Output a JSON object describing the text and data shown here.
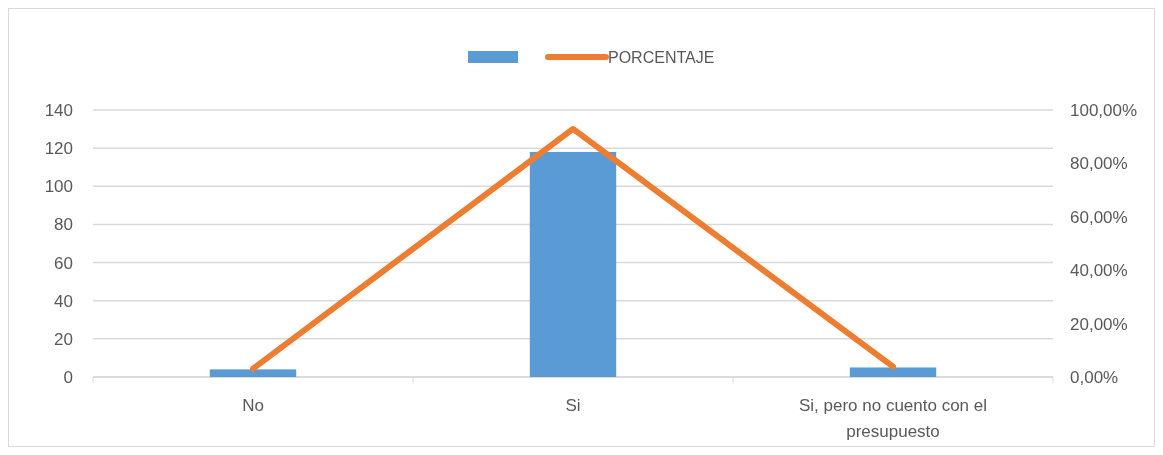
{
  "chart_data": {
    "type": "bar",
    "categories": [
      "No",
      "Si",
      "Si, pero no cuento con el presupuesto"
    ],
    "series": [
      {
        "color": "#5b9bd5",
        "values": [
          4,
          118,
          5
        ]
      },
      {
        "type": "line",
        "name": "PORCENTAJE",
        "color": "#ed7d31",
        "axis": "y2",
        "values": [
          3.1,
          92.9,
          3.9
        ]
      }
    ],
    "ylim": [
      0,
      140
    ],
    "yticks": [
      0,
      20,
      40,
      60,
      80,
      100,
      120,
      140
    ],
    "y2lim": [
      0,
      100
    ],
    "y2ticks": [
      {
        "value": 0,
        "label": "0,00%"
      },
      {
        "value": 20,
        "label": "20,00%"
      },
      {
        "value": 40,
        "label": "40,00%"
      },
      {
        "value": 60,
        "label": "60,00%"
      },
      {
        "value": 80,
        "label": "80,00%"
      },
      {
        "value": 100,
        "label": "100,00%"
      }
    ],
    "grid": "y",
    "legend": "top",
    "marker": "none",
    "line_style": "solid"
  }
}
